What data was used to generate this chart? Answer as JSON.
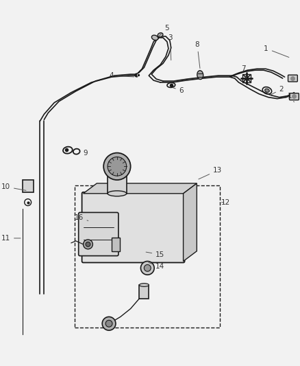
{
  "bg_color": "#f2f2f2",
  "line_color": "#1a1a1a",
  "label_color": "#333333",
  "figsize": [
    4.38,
    5.33
  ],
  "dpi": 100
}
